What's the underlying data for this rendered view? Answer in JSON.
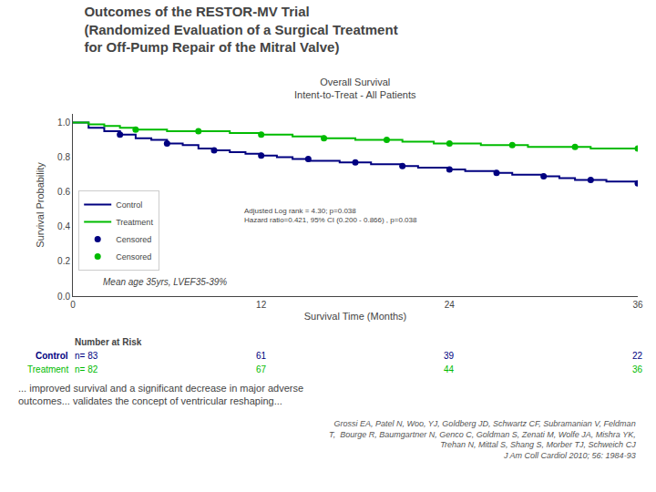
{
  "chart_data": {
    "type": "line",
    "title": "Outcomes of the RESTOR-MV Trial\n(Randomized Evaluation of a Surgical Treatment\nfor Off-Pump Repair of the Mitral Valve)",
    "subtitle": "Overall Survival\nIntent-to-Treat - All Patients",
    "xlabel": "Survival Time (Months)",
    "ylabel": "Survival Probability",
    "xlim": [
      0,
      36
    ],
    "xticks": [
      0,
      12,
      24,
      36
    ],
    "ylim": [
      0.0,
      1.05
    ],
    "yticks": [
      {
        "value": 0.0,
        "label": "0.0"
      },
      0.2,
      0.4,
      0.6,
      0.8,
      {
        "value": 1.0,
        "label": "1.0"
      }
    ],
    "grid": false,
    "legend": "left",
    "series": [
      {
        "name": "Control",
        "type": "step",
        "color": "#000080",
        "x": [
          0,
          1,
          2,
          3,
          4,
          5,
          6,
          7,
          8,
          9,
          10,
          11,
          12,
          13,
          14,
          15,
          16,
          17,
          18,
          19,
          20,
          21,
          22,
          23,
          24,
          25,
          26,
          27,
          28,
          29,
          30,
          31,
          32,
          33,
          34,
          35,
          36
        ],
        "values": [
          1.0,
          0.97,
          0.95,
          0.93,
          0.91,
          0.9,
          0.88,
          0.87,
          0.85,
          0.84,
          0.83,
          0.82,
          0.81,
          0.8,
          0.79,
          0.78,
          0.78,
          0.77,
          0.77,
          0.76,
          0.76,
          0.75,
          0.74,
          0.74,
          0.73,
          0.72,
          0.72,
          0.71,
          0.7,
          0.7,
          0.69,
          0.68,
          0.67,
          0.67,
          0.66,
          0.66,
          0.65
        ]
      },
      {
        "name": "Treatment",
        "type": "step",
        "color": "#00bb00",
        "x": [
          0,
          1,
          2,
          3,
          4,
          5,
          6,
          7,
          8,
          9,
          10,
          11,
          12,
          13,
          14,
          15,
          16,
          17,
          18,
          19,
          20,
          21,
          22,
          23,
          24,
          25,
          26,
          27,
          28,
          29,
          30,
          31,
          32,
          33,
          34,
          35,
          36
        ],
        "values": [
          1.0,
          0.99,
          0.98,
          0.97,
          0.96,
          0.96,
          0.95,
          0.95,
          0.95,
          0.95,
          0.94,
          0.94,
          0.93,
          0.93,
          0.92,
          0.92,
          0.91,
          0.91,
          0.9,
          0.9,
          0.9,
          0.89,
          0.89,
          0.88,
          0.88,
          0.88,
          0.87,
          0.87,
          0.87,
          0.86,
          0.86,
          0.86,
          0.86,
          0.85,
          0.85,
          0.85,
          0.85
        ]
      },
      {
        "name": "Censored",
        "type": "scatter",
        "marker": "circle",
        "color": "#000080",
        "x": [
          3,
          6,
          9,
          12,
          15,
          18,
          21,
          24,
          27,
          30,
          33,
          36
        ],
        "values": [
          0.93,
          0.88,
          0.84,
          0.81,
          0.79,
          0.77,
          0.75,
          0.73,
          0.71,
          0.69,
          0.67,
          0.65
        ]
      },
      {
        "name": "Censored",
        "type": "scatter",
        "marker": "circle",
        "color": "#00bb00",
        "x": [
          4,
          8,
          12,
          16,
          20,
          24,
          28,
          32,
          36
        ],
        "values": [
          0.96,
          0.95,
          0.93,
          0.91,
          0.9,
          0.88,
          0.87,
          0.86,
          0.85
        ]
      }
    ],
    "annotations": [
      "Adjusted Log rank = 4.30; p=0.038\nHazard ratio=0.421, 95% CI (0.200 - 0.866) , p=0.038",
      "Mean age 35yrs, LVEF35-39%",
      "... improved survival and a significant decrease in major adverse\noutcomes... validates the concept of ventricular reshaping...",
      "Grossi EA, Patel N, Woo, YJ, Goldberg JD, Schwartz CF, Subramanian V, Feldman\nT,  Bourge R, Baumgartner N, Genco C, Goldman S, Zenati M, Wolfe JA, Mishra YK,\nTrehan N, Mittal S, Shang S, Morber TJ, Schweich CJ\nJ Am Coll Cardiol 2010; 56: 1984-93"
    ],
    "risk_table": {
      "title": "Number at Risk",
      "x": [
        12,
        24,
        36
      ],
      "rows": [
        {
          "name": "Control",
          "n": "n= 83",
          "color": "#000080",
          "values": [
            61,
            39,
            22
          ]
        },
        {
          "name": "Treatment",
          "n": "n= 82",
          "color": "#00bb00",
          "values": [
            67,
            44,
            36
          ]
        }
      ]
    }
  }
}
